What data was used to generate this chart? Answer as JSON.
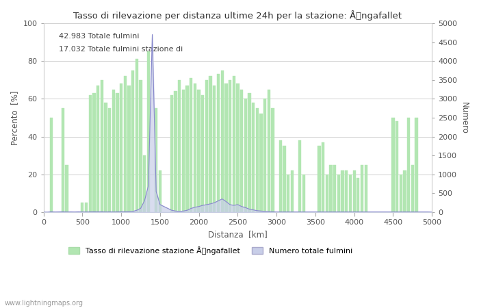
{
  "title": "Tasso di rilevazione per distanza ultime 24h per la stazione: Ångafallet",
  "xlabel": "Distanza  [km]",
  "ylabel_left": "Percento  [%]",
  "ylabel_right": "Numero",
  "xlim": [
    0,
    5000
  ],
  "ylim_left": [
    0,
    100
  ],
  "ylim_right": [
    0,
    5000
  ],
  "annotation1": "42.983 Totale fulmini",
  "annotation2": "17.032 Totale fulmini stazione di",
  "legend_green": "Tasso di rilevazione stazione Ångafallet",
  "legend_blue": "Numero totale fulmini",
  "footer": "www.lightningmaps.org",
  "bar_color": "#b2e6b2",
  "line_color": "#b0b8e0",
  "line_fill_color": "#c8cee8",
  "background_color": "#ffffff",
  "grid_color": "#d0d0d0",
  "green_x": [
    100,
    250,
    300,
    500,
    550,
    600,
    650,
    700,
    750,
    800,
    850,
    900,
    950,
    1000,
    1050,
    1100,
    1150,
    1200,
    1250,
    1300,
    1350,
    1450,
    1500,
    1650,
    1700,
    1750,
    1800,
    1850,
    1900,
    1950,
    2000,
    2050,
    2100,
    2150,
    2200,
    2250,
    2300,
    2350,
    2400,
    2450,
    2500,
    2550,
    2600,
    2650,
    2700,
    2750,
    2800,
    2850,
    2900,
    2950,
    3050,
    3100,
    3150,
    3200,
    3300,
    3350,
    3550,
    3600,
    3650,
    3700,
    3750,
    3800,
    3850,
    3900,
    3950,
    4000,
    4050,
    4100,
    4150,
    4500,
    4550,
    4600,
    4650,
    4700,
    4750,
    4800
  ],
  "green_y": [
    50,
    55,
    25,
    5,
    5,
    62,
    63,
    67,
    70,
    58,
    55,
    65,
    63,
    68,
    72,
    67,
    75,
    81,
    70,
    30,
    85,
    55,
    22,
    62,
    64,
    70,
    65,
    67,
    71,
    68,
    65,
    62,
    70,
    72,
    67,
    73,
    75,
    68,
    70,
    72,
    68,
    65,
    60,
    63,
    58,
    55,
    52,
    60,
    65,
    55,
    38,
    35,
    20,
    22,
    38,
    20,
    35,
    37,
    20,
    25,
    25,
    20,
    22,
    22,
    20,
    22,
    18,
    25,
    25,
    50,
    48,
    20,
    22,
    50,
    25,
    50
  ],
  "blue_x": [
    0,
    50,
    100,
    150,
    200,
    250,
    300,
    350,
    400,
    450,
    500,
    550,
    600,
    650,
    700,
    750,
    800,
    850,
    900,
    950,
    1000,
    1050,
    1100,
    1150,
    1200,
    1250,
    1300,
    1350,
    1400,
    1450,
    1500,
    1550,
    1600,
    1650,
    1700,
    1750,
    1800,
    1850,
    1900,
    1950,
    2000,
    2050,
    2100,
    2150,
    2200,
    2250,
    2300,
    2350,
    2400,
    2450,
    2500,
    2550,
    2600,
    2650,
    2700,
    2750,
    2800,
    2850,
    2900,
    2950,
    3000,
    3050,
    3100,
    3150,
    3200,
    3250,
    3300,
    3350,
    3400,
    3450,
    3500,
    3550,
    3600,
    3650,
    3700,
    3750,
    3800,
    3850,
    3900,
    3950,
    4000,
    4050,
    4100,
    4150,
    4200,
    4250,
    4300,
    4350,
    4400,
    4450,
    4500,
    4550,
    4600,
    4650,
    4700,
    4750,
    4800,
    4850,
    4900,
    4950,
    5000
  ],
  "blue_y": [
    0,
    0,
    10,
    5,
    8,
    10,
    5,
    8,
    5,
    10,
    5,
    5,
    8,
    10,
    8,
    10,
    5,
    8,
    5,
    8,
    10,
    12,
    15,
    20,
    50,
    100,
    300,
    700,
    4700,
    550,
    200,
    150,
    100,
    50,
    30,
    20,
    30,
    50,
    100,
    130,
    150,
    180,
    200,
    220,
    250,
    300,
    350,
    280,
    200,
    180,
    200,
    150,
    120,
    80,
    60,
    40,
    30,
    20,
    15,
    10,
    5,
    5,
    5,
    5,
    5,
    5,
    5,
    5,
    5,
    5,
    5,
    5,
    5,
    5,
    5,
    5,
    5,
    5,
    5,
    5,
    5,
    5,
    5,
    5,
    5,
    5,
    5,
    5,
    5,
    5,
    5,
    5,
    5,
    5,
    5,
    5,
    5,
    5,
    5,
    5,
    0
  ]
}
